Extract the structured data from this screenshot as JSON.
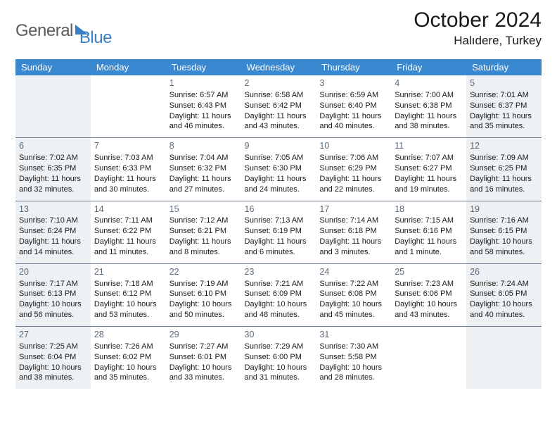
{
  "logo": {
    "part1": "General",
    "part2": "Blue"
  },
  "title": "October 2024",
  "subtitle": "Halıdere, Turkey",
  "colors": {
    "header_bg": "#3a89d0",
    "shaded_bg": "#eef1f4",
    "border": "#6b7a8a",
    "logo_gray": "#5a5a5a",
    "logo_blue": "#3a7fc4"
  },
  "weekdays": [
    "Sunday",
    "Monday",
    "Tuesday",
    "Wednesday",
    "Thursday",
    "Friday",
    "Saturday"
  ],
  "weeks": [
    [
      {
        "shaded": true
      },
      {},
      {
        "num": "1",
        "sunrise": "Sunrise: 6:57 AM",
        "sunset": "Sunset: 6:43 PM",
        "day1": "Daylight: 11 hours",
        "day2": "and 46 minutes."
      },
      {
        "num": "2",
        "sunrise": "Sunrise: 6:58 AM",
        "sunset": "Sunset: 6:42 PM",
        "day1": "Daylight: 11 hours",
        "day2": "and 43 minutes."
      },
      {
        "num": "3",
        "sunrise": "Sunrise: 6:59 AM",
        "sunset": "Sunset: 6:40 PM",
        "day1": "Daylight: 11 hours",
        "day2": "and 40 minutes."
      },
      {
        "num": "4",
        "sunrise": "Sunrise: 7:00 AM",
        "sunset": "Sunset: 6:38 PM",
        "day1": "Daylight: 11 hours",
        "day2": "and 38 minutes."
      },
      {
        "num": "5",
        "shaded": true,
        "sunrise": "Sunrise: 7:01 AM",
        "sunset": "Sunset: 6:37 PM",
        "day1": "Daylight: 11 hours",
        "day2": "and 35 minutes."
      }
    ],
    [
      {
        "num": "6",
        "shaded": true,
        "sunrise": "Sunrise: 7:02 AM",
        "sunset": "Sunset: 6:35 PM",
        "day1": "Daylight: 11 hours",
        "day2": "and 32 minutes."
      },
      {
        "num": "7",
        "sunrise": "Sunrise: 7:03 AM",
        "sunset": "Sunset: 6:33 PM",
        "day1": "Daylight: 11 hours",
        "day2": "and 30 minutes."
      },
      {
        "num": "8",
        "sunrise": "Sunrise: 7:04 AM",
        "sunset": "Sunset: 6:32 PM",
        "day1": "Daylight: 11 hours",
        "day2": "and 27 minutes."
      },
      {
        "num": "9",
        "sunrise": "Sunrise: 7:05 AM",
        "sunset": "Sunset: 6:30 PM",
        "day1": "Daylight: 11 hours",
        "day2": "and 24 minutes."
      },
      {
        "num": "10",
        "sunrise": "Sunrise: 7:06 AM",
        "sunset": "Sunset: 6:29 PM",
        "day1": "Daylight: 11 hours",
        "day2": "and 22 minutes."
      },
      {
        "num": "11",
        "sunrise": "Sunrise: 7:07 AM",
        "sunset": "Sunset: 6:27 PM",
        "day1": "Daylight: 11 hours",
        "day2": "and 19 minutes."
      },
      {
        "num": "12",
        "shaded": true,
        "sunrise": "Sunrise: 7:09 AM",
        "sunset": "Sunset: 6:25 PM",
        "day1": "Daylight: 11 hours",
        "day2": "and 16 minutes."
      }
    ],
    [
      {
        "num": "13",
        "shaded": true,
        "sunrise": "Sunrise: 7:10 AM",
        "sunset": "Sunset: 6:24 PM",
        "day1": "Daylight: 11 hours",
        "day2": "and 14 minutes."
      },
      {
        "num": "14",
        "sunrise": "Sunrise: 7:11 AM",
        "sunset": "Sunset: 6:22 PM",
        "day1": "Daylight: 11 hours",
        "day2": "and 11 minutes."
      },
      {
        "num": "15",
        "sunrise": "Sunrise: 7:12 AM",
        "sunset": "Sunset: 6:21 PM",
        "day1": "Daylight: 11 hours",
        "day2": "and 8 minutes."
      },
      {
        "num": "16",
        "sunrise": "Sunrise: 7:13 AM",
        "sunset": "Sunset: 6:19 PM",
        "day1": "Daylight: 11 hours",
        "day2": "and 6 minutes."
      },
      {
        "num": "17",
        "sunrise": "Sunrise: 7:14 AM",
        "sunset": "Sunset: 6:18 PM",
        "day1": "Daylight: 11 hours",
        "day2": "and 3 minutes."
      },
      {
        "num": "18",
        "sunrise": "Sunrise: 7:15 AM",
        "sunset": "Sunset: 6:16 PM",
        "day1": "Daylight: 11 hours",
        "day2": "and 1 minute."
      },
      {
        "num": "19",
        "shaded": true,
        "sunrise": "Sunrise: 7:16 AM",
        "sunset": "Sunset: 6:15 PM",
        "day1": "Daylight: 10 hours",
        "day2": "and 58 minutes."
      }
    ],
    [
      {
        "num": "20",
        "shaded": true,
        "sunrise": "Sunrise: 7:17 AM",
        "sunset": "Sunset: 6:13 PM",
        "day1": "Daylight: 10 hours",
        "day2": "and 56 minutes."
      },
      {
        "num": "21",
        "sunrise": "Sunrise: 7:18 AM",
        "sunset": "Sunset: 6:12 PM",
        "day1": "Daylight: 10 hours",
        "day2": "and 53 minutes."
      },
      {
        "num": "22",
        "sunrise": "Sunrise: 7:19 AM",
        "sunset": "Sunset: 6:10 PM",
        "day1": "Daylight: 10 hours",
        "day2": "and 50 minutes."
      },
      {
        "num": "23",
        "sunrise": "Sunrise: 7:21 AM",
        "sunset": "Sunset: 6:09 PM",
        "day1": "Daylight: 10 hours",
        "day2": "and 48 minutes."
      },
      {
        "num": "24",
        "sunrise": "Sunrise: 7:22 AM",
        "sunset": "Sunset: 6:08 PM",
        "day1": "Daylight: 10 hours",
        "day2": "and 45 minutes."
      },
      {
        "num": "25",
        "sunrise": "Sunrise: 7:23 AM",
        "sunset": "Sunset: 6:06 PM",
        "day1": "Daylight: 10 hours",
        "day2": "and 43 minutes."
      },
      {
        "num": "26",
        "shaded": true,
        "sunrise": "Sunrise: 7:24 AM",
        "sunset": "Sunset: 6:05 PM",
        "day1": "Daylight: 10 hours",
        "day2": "and 40 minutes."
      }
    ],
    [
      {
        "num": "27",
        "shaded": true,
        "sunrise": "Sunrise: 7:25 AM",
        "sunset": "Sunset: 6:04 PM",
        "day1": "Daylight: 10 hours",
        "day2": "and 38 minutes."
      },
      {
        "num": "28",
        "sunrise": "Sunrise: 7:26 AM",
        "sunset": "Sunset: 6:02 PM",
        "day1": "Daylight: 10 hours",
        "day2": "and 35 minutes."
      },
      {
        "num": "29",
        "sunrise": "Sunrise: 7:27 AM",
        "sunset": "Sunset: 6:01 PM",
        "day1": "Daylight: 10 hours",
        "day2": "and 33 minutes."
      },
      {
        "num": "30",
        "sunrise": "Sunrise: 7:29 AM",
        "sunset": "Sunset: 6:00 PM",
        "day1": "Daylight: 10 hours",
        "day2": "and 31 minutes."
      },
      {
        "num": "31",
        "sunrise": "Sunrise: 7:30 AM",
        "sunset": "Sunset: 5:58 PM",
        "day1": "Daylight: 10 hours",
        "day2": "and 28 minutes."
      },
      {},
      {
        "shaded": true
      }
    ]
  ]
}
